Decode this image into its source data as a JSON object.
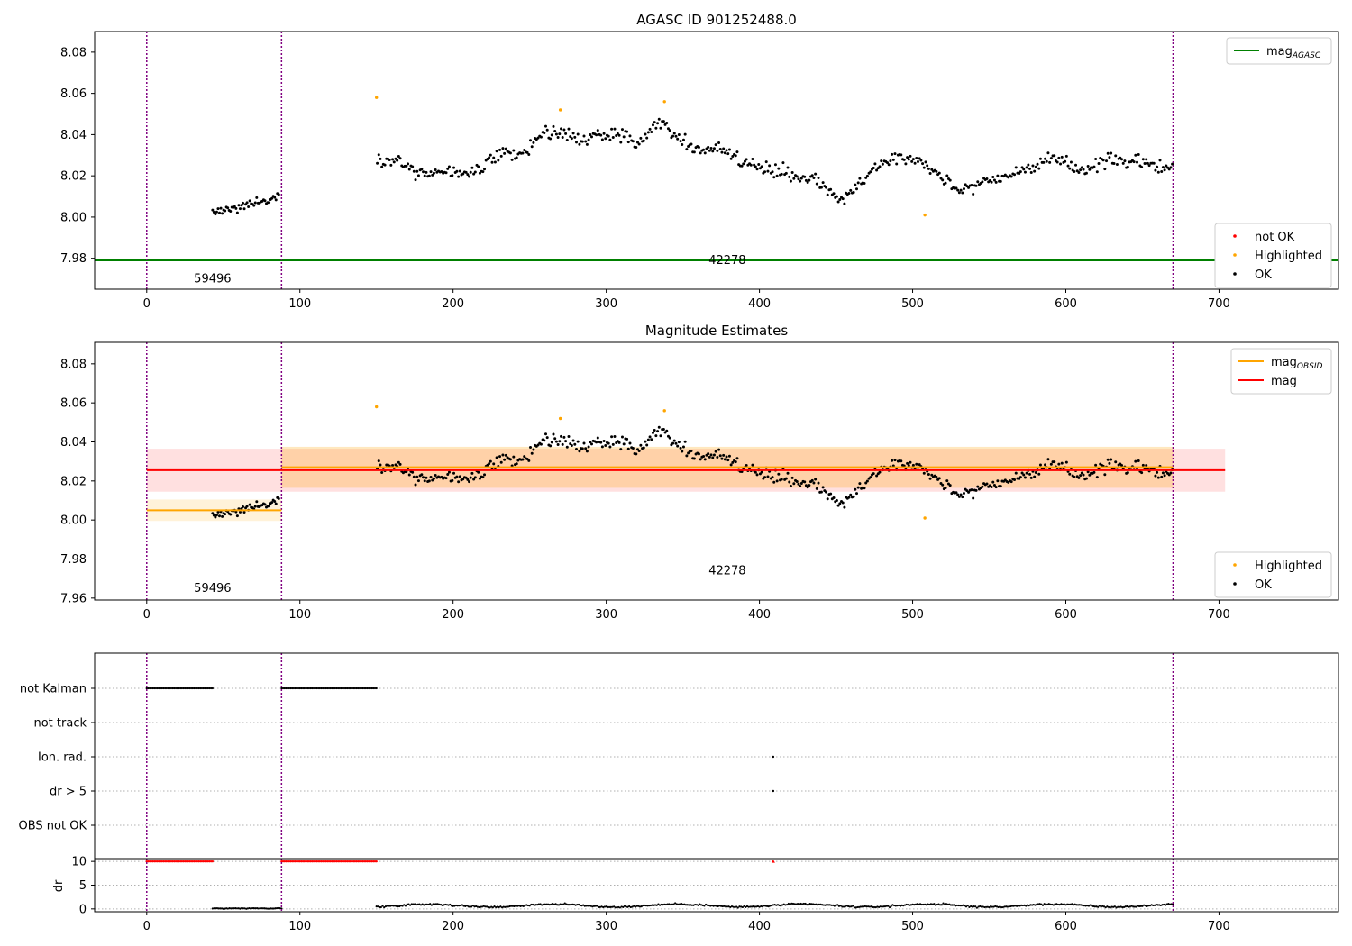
{
  "chart_data": [
    {
      "type": "scatter",
      "title": "AGASC ID 901252488.0",
      "xlim": [
        -34,
        778
      ],
      "ylim": [
        7.965,
        8.09
      ],
      "xticks": [
        0,
        100,
        200,
        300,
        400,
        500,
        600,
        700
      ],
      "yticks": [
        7.98,
        8.0,
        8.02,
        8.04,
        8.06,
        8.08
      ],
      "vlines": [
        0,
        88,
        670
      ],
      "hlines": [
        {
          "name": "mag_AGASC",
          "y": 7.979,
          "color": "#008000"
        }
      ],
      "annotations": [
        {
          "text": "59496",
          "x": 43,
          "y": 7.97
        },
        {
          "text": "42278",
          "x": 379,
          "y": 7.979
        }
      ],
      "legend_upper": [
        {
          "label": "mag",
          "sub": "AGASC",
          "color": "#008000",
          "kind": "line"
        }
      ],
      "legend_lower": [
        {
          "label": "not OK",
          "color": "#ff0000",
          "kind": "dot"
        },
        {
          "label": "Highlighted",
          "color": "#ffa500",
          "kind": "dot"
        },
        {
          "label": "OK",
          "color": "#000000",
          "kind": "dot"
        }
      ],
      "highlighted": [
        [
          150,
          8.058
        ],
        [
          270,
          8.052
        ],
        [
          338,
          8.056
        ],
        [
          508,
          8.001
        ]
      ]
    },
    {
      "type": "scatter",
      "title": "Magnitude Estimates",
      "xlim": [
        -34,
        778
      ],
      "ylim": [
        7.959,
        8.091
      ],
      "xticks": [
        0,
        100,
        200,
        300,
        400,
        500,
        600,
        700
      ],
      "yticks": [
        7.96,
        7.98,
        8.0,
        8.02,
        8.04,
        8.06,
        8.08
      ],
      "vlines": [
        0,
        88,
        670
      ],
      "bands": [
        {
          "name": "mag",
          "x0": 0,
          "x1": 704,
          "y0": 8.0145,
          "y1": 8.0365,
          "color": "#ff0000",
          "opacity": 0.12
        },
        {
          "name": "obsid-59496",
          "x0": 0,
          "x1": 88,
          "y0": 7.9995,
          "y1": 8.0105,
          "color": "#ffa500",
          "opacity": 0.15
        },
        {
          "name": "obsid-42278",
          "x0": 88,
          "x1": 670,
          "y0": 8.0165,
          "y1": 8.0375,
          "color": "#ffa500",
          "opacity": 0.25
        }
      ],
      "segments": [
        {
          "name": "mag",
          "x0": 0,
          "x1": 704,
          "y": 8.0255,
          "color": "#ff0000"
        },
        {
          "name": "mag_OBSID",
          "x0": 0,
          "x1": 88,
          "y": 8.005,
          "color": "#ffa500"
        },
        {
          "name": "mag_OBSID",
          "x0": 88,
          "x1": 670,
          "y": 8.027,
          "color": "#ffa500"
        }
      ],
      "annotations": [
        {
          "text": "59496",
          "x": 43,
          "y": 7.965
        },
        {
          "text": "42278",
          "x": 379,
          "y": 7.974
        }
      ],
      "legend_upper": [
        {
          "label": "mag",
          "sub": "OBSID",
          "color": "#ffa500",
          "kind": "line"
        },
        {
          "label": "mag",
          "sub": "",
          "color": "#ff0000",
          "kind": "line"
        }
      ],
      "legend_lower": [
        {
          "label": "Highlighted",
          "color": "#ffa500",
          "kind": "dot"
        },
        {
          "label": "OK",
          "color": "#000000",
          "kind": "dot"
        }
      ],
      "highlighted": [
        [
          150,
          8.058
        ],
        [
          270,
          8.052
        ],
        [
          338,
          8.056
        ],
        [
          508,
          8.001
        ]
      ]
    },
    {
      "type": "scatter",
      "title": "",
      "xlim": [
        -34,
        778
      ],
      "categories": [
        "not Kalman",
        "not track",
        "Ion. rad.",
        "dr > 5",
        "OBS not OK"
      ],
      "flags": [
        {
          "category": "not Kalman",
          "ranges": [
            [
              0,
              43
            ],
            [
              88,
              150
            ]
          ]
        },
        {
          "category": "not track",
          "ranges": []
        },
        {
          "category": "Ion. rad.",
          "points": [
            409
          ]
        },
        {
          "category": "dr > 5",
          "points": [
            409
          ]
        },
        {
          "category": "OBS not OK",
          "ranges": []
        }
      ]
    },
    {
      "type": "scatter",
      "title": "",
      "ylabel": "dr",
      "xlim": [
        -34,
        778
      ],
      "ylim": [
        -0.6,
        10.6
      ],
      "xticks": [
        0,
        100,
        200,
        300,
        400,
        500,
        600,
        700
      ],
      "yticks": [
        0,
        5,
        10
      ],
      "clipped_value": 10,
      "clipped_ranges": [
        [
          0,
          43
        ],
        [
          88,
          150
        ]
      ],
      "clipped_points": [
        409
      ],
      "low_ranges": [
        [
          43,
          88
        ]
      ]
    }
  ],
  "series_colors": {
    "ok": "#000000",
    "highlighted": "#ffa500",
    "not_ok": "#ff0000",
    "vline": "#800080"
  }
}
